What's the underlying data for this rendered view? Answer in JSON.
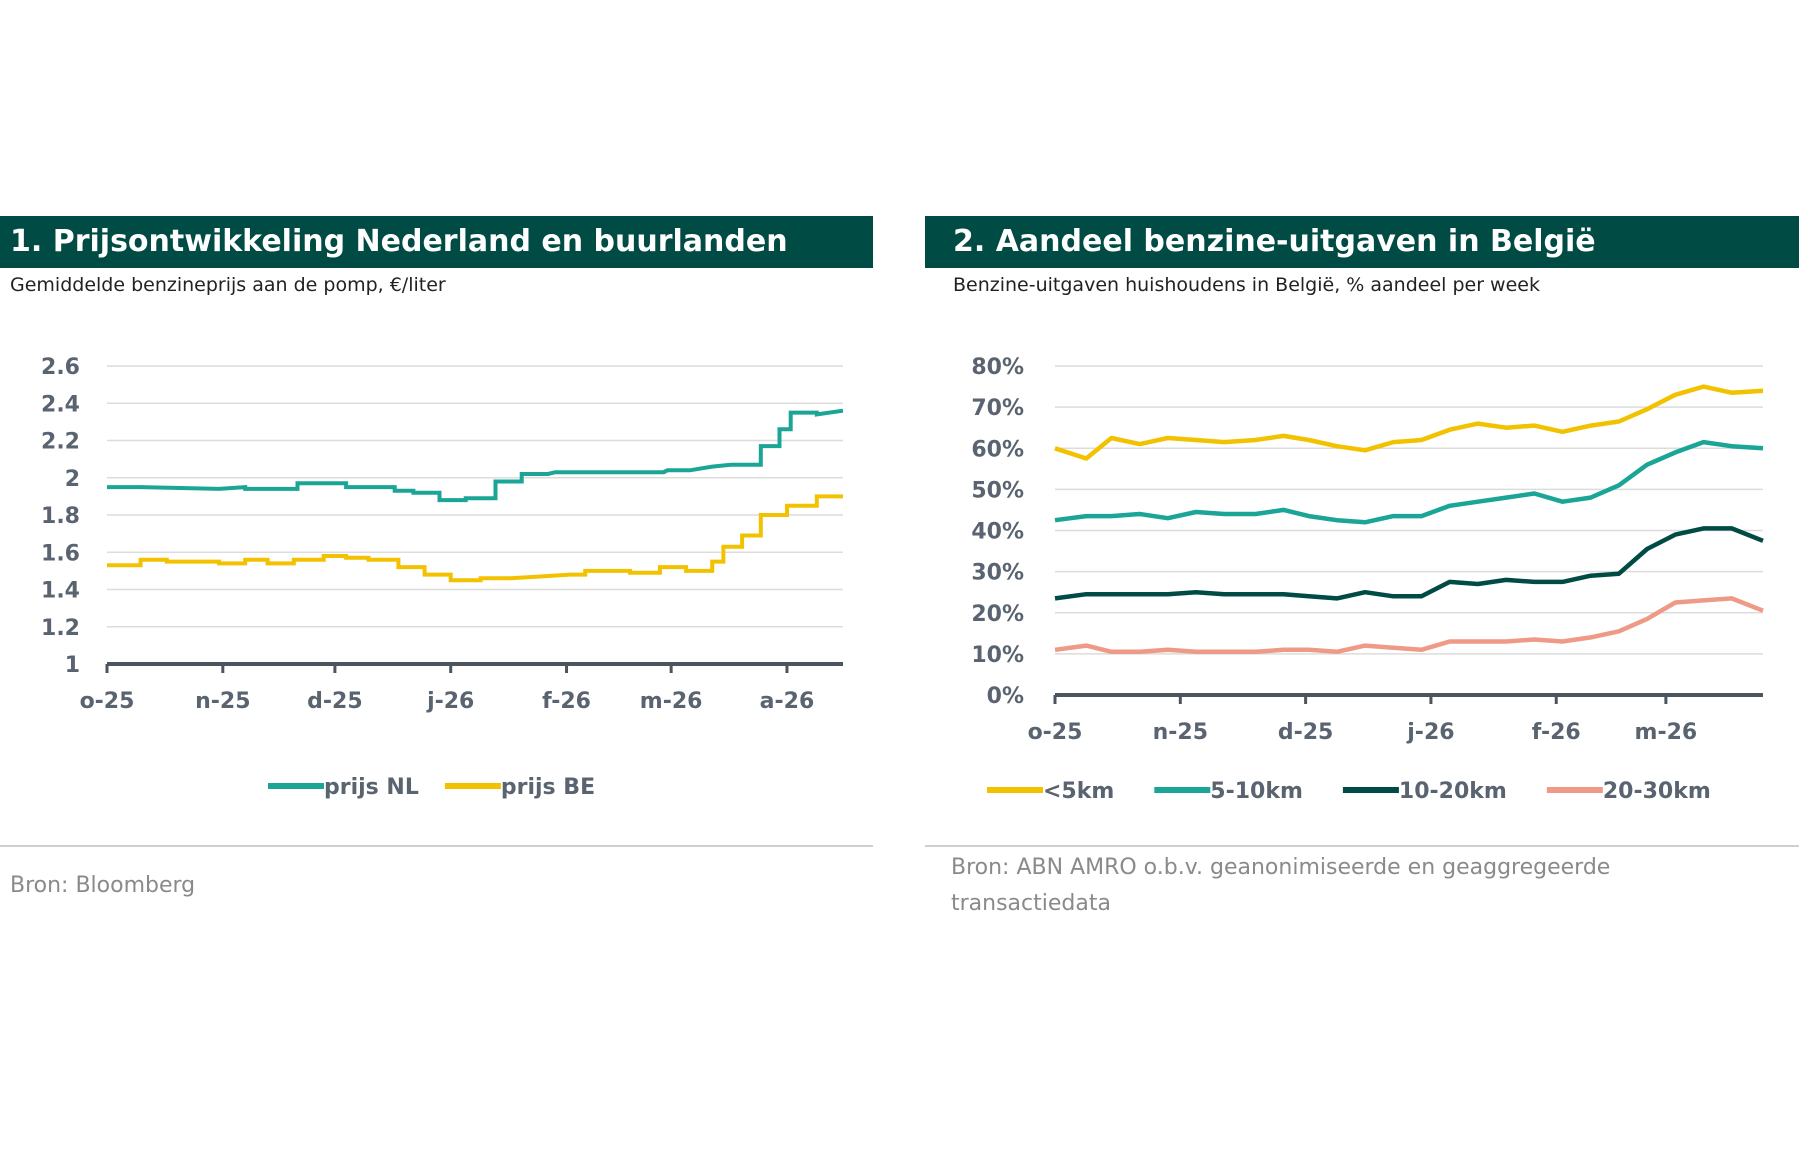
{
  "panel1": {
    "title": "1. Prijsontwikkeling Nederland en buurlanden",
    "subtitle": "Gemiddelde benzineprijs aan de pomp, €/liter",
    "source": "Bron: Bloomberg"
  },
  "panel2": {
    "title": "2. Aandeel benzine-uitgaven in België",
    "subtitle": "Benzine-uitgaven huishoudens in België, % aandeel per week",
    "source": "Bron: ABN AMRO o.b.v. geanonimiseerde en geaggregeerde transactiedata"
  },
  "chart_data": [
    {
      "type": "line",
      "title": "1. Prijsontwikkeling Nederland en buurlanden",
      "subtitle": "Gemiddelde benzineprijs aan de pomp, €/liter",
      "ylim": [
        1,
        2.6
      ],
      "yticks": [
        1,
        1.2,
        1.4,
        1.6,
        1.8,
        2,
        2.2,
        2.4,
        2.6
      ],
      "ytick_labels": [
        "1",
        "1.2",
        "1.4",
        "1.6",
        "1.8",
        "2",
        "2.2",
        "2.4",
        "2.6"
      ],
      "xticks": [
        0,
        31,
        61,
        92,
        123,
        151,
        182
      ],
      "xtick_labels": [
        "o-25",
        "n-25",
        "d-25",
        "j-26",
        "f-26",
        "m-26",
        "a-26"
      ],
      "xlim": [
        0,
        197
      ],
      "grid": true,
      "legend": "bottom",
      "series": [
        {
          "name": "prijs NL",
          "color": "#1aa597",
          "step": true,
          "x": [
            0,
            9,
            30,
            30,
            37,
            37,
            51,
            51,
            64,
            64,
            77,
            77,
            82,
            82,
            89,
            89,
            96,
            96,
            104,
            104,
            111,
            111,
            118,
            120,
            130,
            140,
            149,
            150,
            156,
            162,
            162,
            167,
            175,
            175,
            180,
            180,
            183,
            183,
            190,
            190,
            197
          ],
          "y": [
            1.95,
            1.95,
            1.94,
            1.94,
            1.95,
            1.94,
            1.94,
            1.97,
            1.97,
            1.95,
            1.95,
            1.93,
            1.93,
            1.92,
            1.92,
            1.88,
            1.88,
            1.89,
            1.89,
            1.98,
            1.98,
            2.02,
            2.02,
            2.03,
            2.03,
            2.03,
            2.03,
            2.04,
            2.04,
            2.06,
            2.06,
            2.07,
            2.07,
            2.17,
            2.17,
            2.26,
            2.26,
            2.35,
            2.35,
            2.34,
            2.36
          ]
        },
        {
          "name": "prijs BE",
          "color": "#f2c200",
          "step": true,
          "x": [
            0,
            9,
            9,
            16,
            16,
            30,
            30,
            37,
            37,
            43,
            43,
            50,
            50,
            58,
            58,
            64,
            64,
            70,
            70,
            78,
            78,
            85,
            85,
            92,
            92,
            100,
            100,
            108,
            116,
            124,
            128,
            128,
            136,
            140,
            140,
            148,
            148,
            155,
            155,
            162,
            162,
            165,
            165,
            170,
            170,
            175,
            175,
            182,
            182,
            190,
            190,
            197
          ],
          "y": [
            1.53,
            1.53,
            1.56,
            1.56,
            1.55,
            1.55,
            1.54,
            1.54,
            1.56,
            1.56,
            1.54,
            1.54,
            1.56,
            1.56,
            1.58,
            1.58,
            1.57,
            1.57,
            1.56,
            1.56,
            1.52,
            1.52,
            1.48,
            1.48,
            1.45,
            1.45,
            1.46,
            1.46,
            1.47,
            1.48,
            1.48,
            1.5,
            1.5,
            1.5,
            1.49,
            1.49,
            1.52,
            1.52,
            1.5,
            1.5,
            1.55,
            1.55,
            1.63,
            1.63,
            1.69,
            1.69,
            1.8,
            1.8,
            1.85,
            1.85,
            1.9,
            1.9
          ]
        }
      ]
    },
    {
      "type": "line",
      "title": "2. Aandeel benzine-uitgaven in België",
      "subtitle": "Benzine-uitgaven huishoudens in België, % aandeel per week",
      "ylim": [
        0,
        80
      ],
      "yticks": [
        0,
        10,
        20,
        30,
        40,
        50,
        60,
        70,
        80
      ],
      "ytick_labels": [
        "0%",
        "10%",
        "20%",
        "30%",
        "40%",
        "50%",
        "60%",
        "70%",
        "80%"
      ],
      "xticks": [
        0,
        4,
        8,
        12,
        16,
        19.5
      ],
      "xtick_labels": [
        "o-25",
        "n-25",
        "d-25",
        "j-26",
        "f-26",
        "m-26"
      ],
      "xlim": [
        0,
        22.6
      ],
      "grid": true,
      "legend": "bottom",
      "series": [
        {
          "name": "<5km",
          "color": "#f2c200",
          "x": [
            0,
            1,
            1.8,
            2.7,
            3.6,
            4.5,
            5.4,
            6.4,
            7.3,
            8.1,
            9,
            9.9,
            10.8,
            11.7,
            12.6,
            13.5,
            14.4,
            15.3,
            16.2,
            17.1,
            18,
            18.9,
            19.8,
            20.7,
            21.6,
            22.6
          ],
          "y": [
            60,
            57.5,
            62.5,
            61,
            62.5,
            62,
            61.5,
            62,
            63,
            62,
            60.5,
            59.5,
            61.5,
            62,
            64.5,
            66,
            65,
            65.5,
            64,
            65.5,
            66.5,
            69.5,
            73,
            75,
            73.5,
            74
          ]
        },
        {
          "name": "5-10km",
          "color": "#1aa597",
          "x": [
            0,
            1,
            1.8,
            2.7,
            3.6,
            4.5,
            5.4,
            6.4,
            7.3,
            8.1,
            9,
            9.9,
            10.8,
            11.7,
            12.6,
            13.5,
            14.4,
            15.3,
            16.2,
            17.1,
            18,
            18.9,
            19.8,
            20.7,
            21.6,
            22.6
          ],
          "y": [
            42.5,
            43.5,
            43.5,
            44,
            43,
            44.5,
            44,
            44,
            45,
            43.5,
            42.5,
            42,
            43.5,
            43.5,
            46,
            47,
            48,
            49,
            47,
            48,
            51,
            56,
            59,
            61.5,
            60.5,
            60
          ]
        },
        {
          "name": "10-20km",
          "color": "#004c45",
          "x": [
            0,
            1,
            1.8,
            2.7,
            3.6,
            4.5,
            5.4,
            6.4,
            7.3,
            8.1,
            9,
            9.9,
            10.8,
            11.7,
            12.6,
            13.5,
            14.4,
            15.3,
            16.2,
            17.1,
            18,
            18.9,
            19.8,
            20.7,
            21.6,
            22.6
          ],
          "y": [
            23.5,
            24.5,
            24.5,
            24.5,
            24.5,
            25,
            24.5,
            24.5,
            24.5,
            24,
            23.5,
            25,
            24,
            24,
            27.5,
            27,
            28,
            27.5,
            27.5,
            29,
            29.5,
            35.5,
            39,
            40.5,
            40.5,
            37.5
          ]
        },
        {
          "name": "20-30km",
          "color": "#ef9a86",
          "x": [
            0,
            1,
            1.8,
            2.7,
            3.6,
            4.5,
            5.4,
            6.4,
            7.3,
            8.1,
            9,
            9.9,
            10.8,
            11.7,
            12.6,
            13.5,
            14.4,
            15.3,
            16.2,
            17.1,
            18,
            18.9,
            19.8,
            20.7,
            21.6,
            22.6
          ],
          "y": [
            11,
            12,
            10.5,
            10.5,
            11,
            10.5,
            10.5,
            10.5,
            11,
            11,
            10.5,
            12,
            11.5,
            11,
            13,
            13,
            13,
            13.5,
            13,
            14,
            15.5,
            18.5,
            22.5,
            23,
            23.5,
            20.5
          ]
        }
      ]
    }
  ]
}
